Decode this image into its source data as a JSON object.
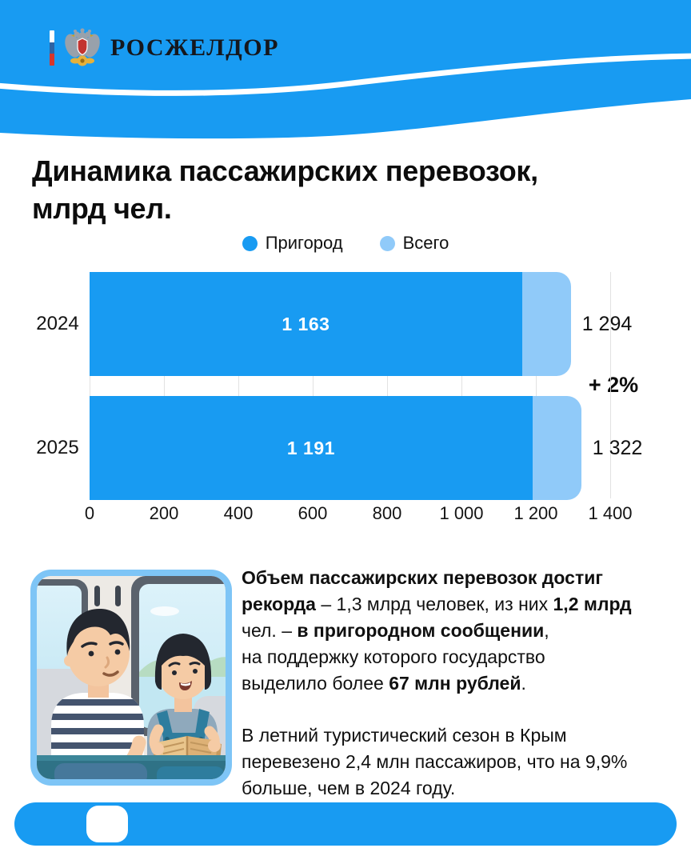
{
  "header": {
    "agency_name": "РОСЖЕЛДОР",
    "emblem_icon": "rosheldor-double-eagle-emblem",
    "flag_icon": "russian-flag-stripe",
    "flag_colors": [
      "#FFFFFF",
      "#2E63A4",
      "#D6362B"
    ]
  },
  "title": {
    "line1": "Динамика пассажирских перевозок,",
    "line2": "млрд чел."
  },
  "colors": {
    "accent": "#189BF2",
    "accent_light": "#90CAF9",
    "grid": "#E2E2E2",
    "illustration_border": "#7EC5F6",
    "text": "#101010"
  },
  "chart_data": {
    "type": "bar",
    "orientation": "horizontal",
    "title": "Динамика пассажирских перевозок, млрд чел.",
    "categories": [
      "2024",
      "2025"
    ],
    "series": [
      {
        "name": "Пригород",
        "color": "#189BF2",
        "values": [
          1163,
          1191
        ],
        "value_labels": [
          "1 163",
          "1 191"
        ]
      },
      {
        "name": "Всего",
        "color": "#90CAF9",
        "values": [
          1294,
          1322
        ],
        "value_labels": [
          "1 294",
          "1 322"
        ]
      }
    ],
    "annotation": "+ 2%",
    "xlim": [
      0,
      1400
    ],
    "x_ticks": [
      0,
      200,
      400,
      600,
      800,
      1000,
      1200,
      1400
    ],
    "x_tick_labels": [
      "0",
      "200",
      "400",
      "600",
      "800",
      "1 000",
      "1 200",
      "1 400"
    ],
    "grid": true,
    "legend_position": "top"
  },
  "info": {
    "illustration": "father-and-daughter-reading-book-on-train",
    "paragraph1": [
      {
        "text": "Объем пассажирских перевозок достиг",
        "bold": true
      },
      {
        "text": "\n"
      },
      {
        "text": "рекорда",
        "bold": true
      },
      {
        "text": " – 1,3 млрд человек, из них ",
        "bold": false
      },
      {
        "text": "1,2 млрд",
        "bold": true
      },
      {
        "text": "\n"
      },
      {
        "text": "чел. – ",
        "bold": false
      },
      {
        "text": "в пригородном сообщении",
        "bold": true
      },
      {
        "text": ",",
        "bold": false
      },
      {
        "text": "\n"
      },
      {
        "text": "на поддержку которого государство",
        "bold": false
      },
      {
        "text": "\n"
      },
      {
        "text": "выделило более ",
        "bold": false
      },
      {
        "text": "67 млн рублей",
        "bold": true
      },
      {
        "text": ".",
        "bold": false
      }
    ],
    "paragraph2": [
      {
        "text": "В летний туристический сезон в Крым",
        "bold": false
      },
      {
        "text": "\n"
      },
      {
        "text": "перевезено 2,4 млн пассажиров, что на 9,9%",
        "bold": false
      },
      {
        "text": "\n"
      },
      {
        "text": "больше, чем в 2024 году.",
        "bold": false
      }
    ]
  },
  "footer": {
    "element": "progress-indicator"
  }
}
